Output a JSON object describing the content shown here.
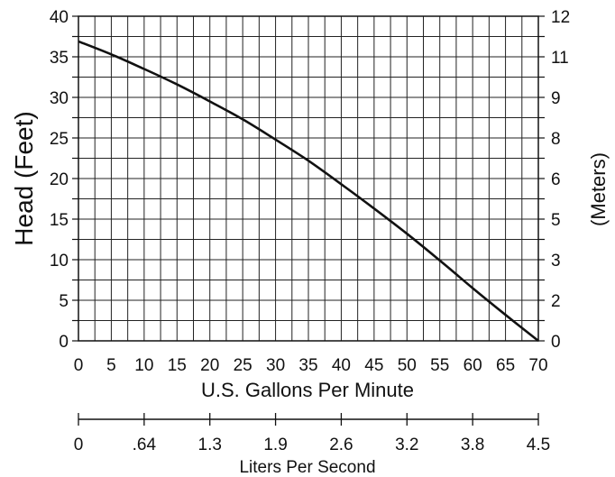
{
  "chart_data": {
    "type": "line",
    "x_label": "U.S. Gallons Per Minute",
    "y_left_label": "Head (Feet)",
    "y_right_label": "(Meters)",
    "secondary_x_label": "Liters Per Second",
    "x_ticks": [
      "0",
      "5",
      "10",
      "15",
      "20",
      "25",
      "30",
      "35",
      "40",
      "45",
      "50",
      "55",
      "60",
      "65",
      "70"
    ],
    "y_left_ticks": [
      "0",
      "5",
      "10",
      "15",
      "20",
      "25",
      "30",
      "35",
      "40"
    ],
    "y_right_ticks": [
      "0",
      "2",
      "3",
      "5",
      "6",
      "8",
      "9",
      "11",
      "12"
    ],
    "secondary_x_ticks": [
      "0",
      ".64",
      "1.3",
      "1.9",
      "2.6",
      "3.2",
      "3.8",
      "4.5"
    ],
    "x_range": [
      0,
      70
    ],
    "y_range": [
      0,
      40
    ],
    "grid": true,
    "series": [
      {
        "x": [
          0,
          5,
          10,
          15,
          20,
          25,
          30,
          35,
          40,
          45,
          50,
          55,
          60,
          65,
          70
        ],
        "y": [
          36.9,
          35.3,
          33.5,
          31.6,
          29.5,
          27.3,
          24.8,
          22.2,
          19.3,
          16.3,
          13.2,
          9.9,
          6.5,
          3.2,
          0
        ]
      }
    ],
    "colors": {
      "curve": "#111111",
      "grid": "#222222",
      "background": "#ffffff"
    }
  }
}
